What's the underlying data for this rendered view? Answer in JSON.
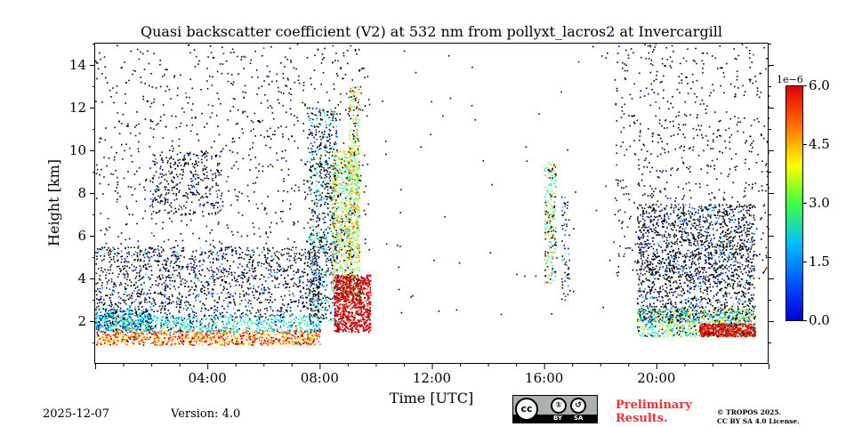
{
  "chart_data": {
    "type": "heatmap",
    "title": "Quasi backscatter coefficient (V2) at 532 nm from pollyxt_lacros2 at Invercargill",
    "xlabel": "Time [UTC]",
    "ylabel": "Height [km]",
    "xlim_hours": [
      0,
      24
    ],
    "ylim_km": [
      0,
      15
    ],
    "x_ticks": [
      {
        "hour": 4,
        "label": "04:00"
      },
      {
        "hour": 8,
        "label": "08:00"
      },
      {
        "hour": 12,
        "label": "12:00"
      },
      {
        "hour": 16,
        "label": "16:00"
      },
      {
        "hour": 20,
        "label": "20:00"
      }
    ],
    "y_ticks": [
      2,
      4,
      6,
      8,
      10,
      12,
      14
    ],
    "colorbar": {
      "range": [
        0.0,
        6.0
      ],
      "exponent_label": "1e−6",
      "ticks": [
        "0.0",
        "1.5",
        "3.0",
        "4.5",
        "6.0"
      ],
      "colormap": "jet"
    },
    "features": [
      {
        "name": "boundary layer aerosol",
        "hours": [
          0,
          8
        ],
        "height_km": [
          0.8,
          2.4
        ],
        "value": "high"
      },
      {
        "name": "thick cloud plume",
        "hours": [
          8.3,
          9.8
        ],
        "height_km": [
          1.0,
          10.0
        ],
        "value": "very high"
      },
      {
        "name": "thin cloud column",
        "hours": [
          16.0,
          16.6
        ],
        "height_km": [
          3.5,
          9.5
        ],
        "value": "moderate"
      },
      {
        "name": "evening aerosol layer",
        "hours": [
          19.3,
          23.5
        ],
        "height_km": [
          1.2,
          3.0
        ],
        "value": "high"
      }
    ]
  },
  "footer": {
    "date": "2025-12-07",
    "version": "Version: 4.0",
    "preliminary": [
      "Preliminary",
      "Results."
    ],
    "license": [
      "© TROPOS 2025.",
      "CC BY SA 4.0 License."
    ],
    "badge": {
      "cc": "cc",
      "by": "BY",
      "sa": "SA",
      "by_symbol": "①",
      "sa_symbol": "↺"
    }
  },
  "colors": {
    "preliminary": "#e8333a",
    "badge_bg": "#aab2ab"
  }
}
